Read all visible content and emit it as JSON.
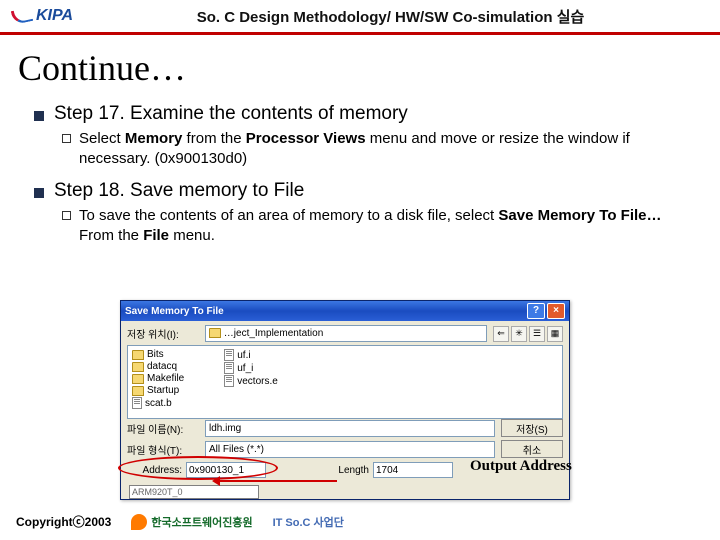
{
  "header": {
    "logo_text": "KIPA",
    "title": "So. C Design Methodology/ HW/SW Co-simulation 실습"
  },
  "slide_title": "Continue…",
  "step17": {
    "label": "Step 17. Examine the contents of memory",
    "sub_pre": "Select ",
    "sub_b1": "Memory",
    "sub_mid1": " from the ",
    "sub_b2": "Processor Views",
    "sub_mid2": " menu and move or resize the window if necessary. (0x900130d0)"
  },
  "step18": {
    "label": "Step 18. Save memory to File",
    "sub_pre": "To save the contents of an area of memory to a disk file, select ",
    "sub_b1": "Save Memory To File…",
    "sub_mid": " From the ",
    "sub_b2": "File",
    "sub_post": " menu."
  },
  "dialog": {
    "title": "Save Memory To File",
    "look_in_label": "저장 위치(I):",
    "look_in_value": "…ject_Implementation",
    "files": [
      {
        "type": "folder",
        "name": "Bits"
      },
      {
        "type": "folder",
        "name": "datacq"
      },
      {
        "type": "folder",
        "name": "Makefile"
      },
      {
        "type": "folder",
        "name": "Startup"
      },
      {
        "type": "doc",
        "name": "scat.b"
      },
      {
        "type": "doc",
        "name": "uf.i"
      },
      {
        "type": "doc",
        "name": "uf_i"
      },
      {
        "type": "doc",
        "name": "vectors.e"
      }
    ],
    "filename_label": "파일 이름(N):",
    "filename_value": "ldh.img",
    "filetype_label": "파일 형식(T):",
    "filetype_value": "All Files (*.*)",
    "save_btn": "저장(S)",
    "cancel_btn": "취소",
    "address_label": "Address:",
    "address_value": "0x900130_1",
    "length_label": "Length",
    "length_value": "1704",
    "rm_label": "ARM920T_0"
  },
  "annotation": "Output Address",
  "footer": {
    "copyright": "Copyrightⓒ2003",
    "org1": "한국소프트웨어진흥원",
    "org2": "IT So.C 사업단"
  },
  "colors": {
    "accent_red": "#c00000",
    "win_blue": "#2a5fd6",
    "folder": "#f6d872"
  }
}
